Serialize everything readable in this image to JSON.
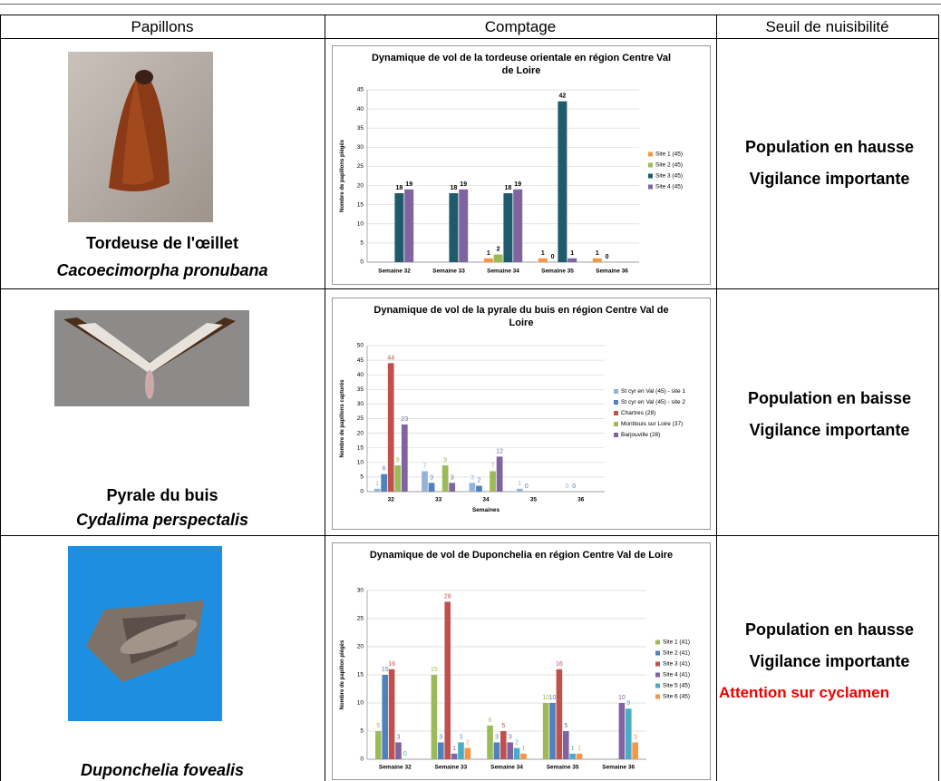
{
  "table": {
    "headers": [
      "Papillons",
      "Comptage",
      "Seuil de nuisibilité"
    ],
    "rows": [
      {
        "name": "Tordeuse de l'œillet",
        "latin": "Cacoecimorpha pronubana",
        "threshold": [
          "Population en hausse",
          "Vigilance importante"
        ]
      },
      {
        "name": "Pyrale du buis",
        "latin": "Cydalima perspectalis",
        "threshold": [
          "Population en baisse",
          "Vigilance importante"
        ]
      },
      {
        "latin": "Duponchelia fovealis",
        "threshold": [
          "Population en hausse",
          "Vigilance importante",
          "Attention sur cyclamen"
        ]
      }
    ]
  },
  "chart_data": [
    {
      "type": "bar",
      "title": "Dynamique de vol de la tordeuse orientale en région Centre Val de Loire",
      "y_label": "Nombre de papillons piégés",
      "categories": [
        "Semaine 32",
        "Semaine 33",
        "Semaine 34",
        "Semaine 35",
        "Semaine 36"
      ],
      "series": [
        {
          "name": "Site 1 (45)",
          "color": "#f79646",
          "values": [
            null,
            null,
            1,
            1,
            1
          ]
        },
        {
          "name": "Site 2 (45)",
          "color": "#9bbb59",
          "values": [
            null,
            null,
            2,
            0,
            0
          ]
        },
        {
          "name": "Site 3 (45)",
          "color": "#1f5b6b",
          "values": [
            18,
            18,
            18,
            42,
            null
          ]
        },
        {
          "name": "Site 4 (45)",
          "color": "#8064a2",
          "values": [
            19,
            19,
            19,
            1,
            null
          ]
        }
      ],
      "ylim": [
        0,
        45
      ],
      "yticks": [
        0,
        5,
        10,
        15,
        20,
        25,
        30,
        35,
        40,
        45
      ],
      "grid": true
    },
    {
      "type": "bar",
      "title": "Dynamique de vol de la pyrale du buis en région Centre Val de Loire",
      "y_label": "Nombre de papillons capturés",
      "x_label": "Semaines",
      "categories": [
        "32",
        "33",
        "34",
        "35",
        "36"
      ],
      "series": [
        {
          "name": "St cyr en Val (45) - site 1",
          "color": "#95b3d7",
          "values": [
            1,
            7,
            3,
            1,
            0
          ]
        },
        {
          "name": "St cyr en Val (45) - site 2",
          "color": "#4f81bd",
          "values": [
            6,
            3,
            2,
            0,
            0
          ]
        },
        {
          "name": "Chartres (28)",
          "color": "#c0504d",
          "values": [
            44,
            null,
            null,
            null,
            null
          ]
        },
        {
          "name": "Montlouis sur Loire (37)",
          "color": "#9bbb59",
          "values": [
            9,
            9,
            7,
            null,
            null
          ]
        },
        {
          "name": "Barjouville (28)",
          "color": "#8064a2",
          "values": [
            23,
            3,
            12,
            null,
            null
          ]
        }
      ],
      "ylim": [
        0,
        50
      ],
      "yticks": [
        0,
        5,
        10,
        15,
        20,
        25,
        30,
        35,
        40,
        45,
        50
      ],
      "grid": true
    },
    {
      "type": "bar",
      "title": "Dynamique de vol de Duponchelia en région Centre Val de Loire",
      "y_label": "Nombre de papillon piégés",
      "categories": [
        "Semaine 32",
        "Semaine 33",
        "Semaine 34",
        "Semaine 35",
        "Semaine 36"
      ],
      "series": [
        {
          "name": "Site 1 (41)",
          "color": "#9bbb59",
          "values": [
            5,
            15,
            6,
            10,
            null
          ]
        },
        {
          "name": "Site 2 (41)",
          "color": "#4f81bd",
          "values": [
            15,
            3,
            3,
            10,
            null
          ]
        },
        {
          "name": "Site 3 (41)",
          "color": "#c0504d",
          "values": [
            16,
            28,
            5,
            16,
            null
          ]
        },
        {
          "name": "Site 4 (41)",
          "color": "#8064a2",
          "values": [
            3,
            1,
            3,
            5,
            10
          ]
        },
        {
          "name": "Site 5 (45)",
          "color": "#4bacc6",
          "values": [
            0,
            3,
            2,
            1,
            9
          ]
        },
        {
          "name": "Site 6 (45)",
          "color": "#f79646",
          "values": [
            null,
            2,
            1,
            1,
            3
          ]
        }
      ],
      "ylim": [
        0,
        30
      ],
      "yticks": [
        0,
        5,
        10,
        15,
        20,
        25,
        30
      ],
      "grid": true
    }
  ]
}
